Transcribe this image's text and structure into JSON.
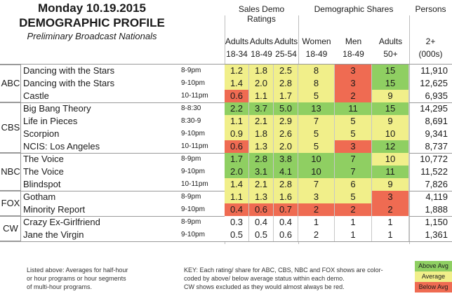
{
  "header": {
    "title_line1": "Monday 10.19.2015",
    "title_line2": "DEMOGRAPHIC PROFILE",
    "subtitle": "Preliminary Broadcast Nationals"
  },
  "column_groups": {
    "sales": "Sales Demo Ratings",
    "shares": "Demographic Shares",
    "persons": "Persons"
  },
  "columns": [
    {
      "l1": "Adults",
      "l2": "18-34"
    },
    {
      "l1": "Adults",
      "l2": "18-49"
    },
    {
      "l1": "Adults",
      "l2": "25-54"
    },
    {
      "l1": "Women",
      "l2": "18-49"
    },
    {
      "l1": "Men",
      "l2": "18-49"
    },
    {
      "l1": "Adults",
      "l2": "50+"
    },
    {
      "l1": "2+",
      "l2": "(000s)"
    }
  ],
  "networks": [
    "ABC",
    "CBS",
    "NBC",
    "FOX",
    "CW"
  ],
  "rows": [
    {
      "show": "Dancing with the Stars",
      "time": "8-9pm",
      "r": [
        "1.2",
        "1.8",
        "2.5"
      ],
      "s": [
        "8",
        "3",
        "15"
      ],
      "p": "11,910",
      "c": [
        "avg",
        "avg",
        "avg",
        "avg",
        "blw",
        "abv"
      ]
    },
    {
      "show": "Dancing with the Stars",
      "time": "9-10pm",
      "r": [
        "1.4",
        "2.0",
        "2.8"
      ],
      "s": [
        "8",
        "3",
        "15"
      ],
      "p": "12,625",
      "c": [
        "avg",
        "avg",
        "avg",
        "avg",
        "blw",
        "abv"
      ]
    },
    {
      "show": "Castle",
      "time": "10-11pm",
      "r": [
        "0.6",
        "1.1",
        "1.7"
      ],
      "s": [
        "5",
        "2",
        "9"
      ],
      "p": "6,935",
      "c": [
        "blw",
        "avg",
        "avg",
        "avg",
        "blw",
        "avg"
      ]
    },
    {
      "show": "Big Bang Theory",
      "time": "8-8:30",
      "r": [
        "2.2",
        "3.7",
        "5.0"
      ],
      "s": [
        "13",
        "11",
        "15"
      ],
      "p": "14,295",
      "c": [
        "abv",
        "abv",
        "abv",
        "abv",
        "abv",
        "abv"
      ]
    },
    {
      "show": "Life in Pieces",
      "time": "8:30-9",
      "r": [
        "1.1",
        "2.1",
        "2.9"
      ],
      "s": [
        "7",
        "5",
        "9"
      ],
      "p": "8,691",
      "c": [
        "avg",
        "avg",
        "avg",
        "avg",
        "avg",
        "avg"
      ]
    },
    {
      "show": "Scorpion",
      "time": "9-10pm",
      "r": [
        "0.9",
        "1.8",
        "2.6"
      ],
      "s": [
        "5",
        "5",
        "10"
      ],
      "p": "9,341",
      "c": [
        "avg",
        "avg",
        "avg",
        "avg",
        "avg",
        "avg"
      ]
    },
    {
      "show": "NCIS: Los Angeles",
      "time": "10-11pm",
      "r": [
        "0.6",
        "1.3",
        "2.0"
      ],
      "s": [
        "5",
        "3",
        "12"
      ],
      "p": "8,737",
      "c": [
        "blw",
        "avg",
        "avg",
        "avg",
        "blw",
        "abv"
      ]
    },
    {
      "show": "The Voice",
      "time": "8-9pm",
      "r": [
        "1.7",
        "2.8",
        "3.8"
      ],
      "s": [
        "10",
        "7",
        "10"
      ],
      "p": "10,772",
      "c": [
        "abv",
        "abv",
        "abv",
        "abv",
        "abv",
        "avg"
      ]
    },
    {
      "show": "The Voice",
      "time": "9-10pm",
      "r": [
        "2.0",
        "3.1",
        "4.1"
      ],
      "s": [
        "10",
        "7",
        "11"
      ],
      "p": "11,522",
      "c": [
        "abv",
        "abv",
        "abv",
        "abv",
        "abv",
        "abv"
      ]
    },
    {
      "show": "Blindspot",
      "time": "10-11pm",
      "r": [
        "1.4",
        "2.1",
        "2.8"
      ],
      "s": [
        "7",
        "6",
        "9"
      ],
      "p": "7,826",
      "c": [
        "avg",
        "avg",
        "avg",
        "avg",
        "avg",
        "avg"
      ]
    },
    {
      "show": "Gotham",
      "time": "8-9pm",
      "r": [
        "1.1",
        "1.3",
        "1.6"
      ],
      "s": [
        "3",
        "5",
        "3"
      ],
      "p": "4,119",
      "c": [
        "avg",
        "avg",
        "avg",
        "avg",
        "avg",
        "blw"
      ]
    },
    {
      "show": "Minority Report",
      "time": "9-10pm",
      "r": [
        "0.4",
        "0.6",
        "0.7"
      ],
      "s": [
        "2",
        "2",
        "2"
      ],
      "p": "1,888",
      "c": [
        "blw",
        "blw",
        "blw",
        "blw",
        "blw",
        "blw"
      ]
    },
    {
      "show": "Crazy Ex-Girlfriend",
      "time": "8-9pm",
      "r": [
        "0.3",
        "0.4",
        "0.4"
      ],
      "s": [
        "1",
        "1",
        "1"
      ],
      "p": "1,150",
      "c": [
        "n",
        "n",
        "n",
        "n",
        "n",
        "n"
      ]
    },
    {
      "show": "Jane the Virgin",
      "time": "9-10pm",
      "r": [
        "0.5",
        "0.5",
        "0.6"
      ],
      "s": [
        "2",
        "1",
        "1"
      ],
      "p": "1,361",
      "c": [
        "n",
        "n",
        "n",
        "n",
        "n",
        "n"
      ]
    }
  ],
  "notes": {
    "left": [
      "Listed above: Averages for half-hour",
      "or hour programs or hour segments",
      "of multi-hour programs."
    ],
    "key": [
      "KEY: Each rating/ share for ABC, CBS, NBC and FOX shows are color-",
      "coded by above/ below average status within each demo.",
      "CW shows excluded as they would almost always be red."
    ]
  },
  "legend": {
    "above": "Above Avg",
    "average": "Average",
    "below": "Below Avg"
  },
  "colors": {
    "above": "#8fcf62",
    "average": "#f1ef8a",
    "below": "#ef6b52",
    "neutral": "#ffffff"
  }
}
